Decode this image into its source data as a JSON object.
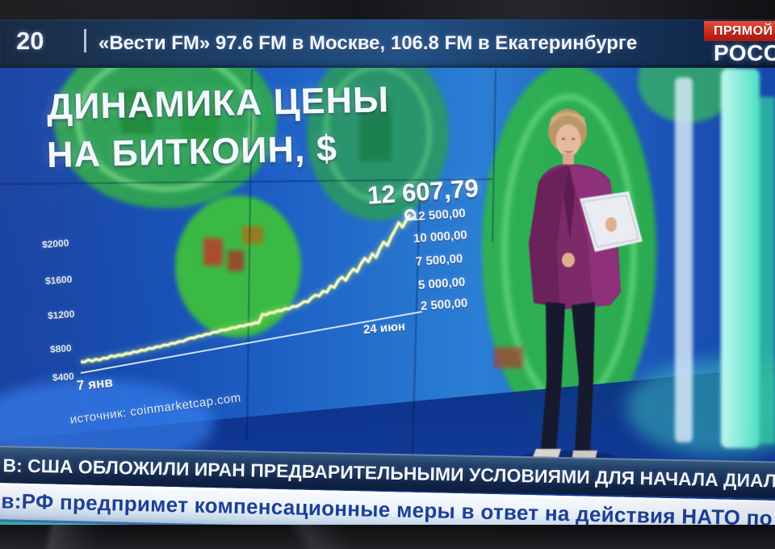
{
  "screen": {
    "top_bar": {
      "clock": "20",
      "station_info": "«Вести FM» 97.6 FM в Москве, 106.8 FM в Екатеринбурге",
      "live_badge": "ПРЯМОЙ",
      "channel_logo": "РОССИ"
    },
    "graphic": {
      "title_line1": "ДИНАМИКА ЦЕНЫ",
      "title_line2": "НА БИТКОИН, $",
      "price_callout": "12 607,79",
      "source": "источник: coinmarketcap.com"
    },
    "tickers": {
      "line1": "В: США ОБЛОЖИЛИ ИРАН ПРЕДВАРИТЕЛЬНЫМИ УСЛОВИЯМИ ДЛЯ НАЧАЛА ДИАЛОГА",
      "line2": "в:РФ предпримет компенсационные меры в ответ на действия НАТО по ДРСМД"
    },
    "colors": {
      "accent_red": "#c02318",
      "wall_blue": "#1a55bd",
      "coin_green": "#35c24a",
      "ticker2_text": "#1c3f99"
    }
  },
  "chart_data": {
    "type": "line",
    "title": "ДИНАМИКА ЦЕНЫ НА БИТКОИН, $",
    "unit": "USD",
    "grid": false,
    "legend_position": "none",
    "x_labels": [
      "7 янв",
      "24 июн"
    ],
    "left_axis_labels": [
      "$2000",
      "$1600",
      "$1200",
      "$800",
      "$400"
    ],
    "right_axis_labels": [
      "12 500,00",
      "10 000,00",
      "7 500,00",
      "5 000,00",
      "2 500,00"
    ],
    "right_axis_range": [
      2500,
      12500
    ],
    "last_point": {
      "label": "12 607,79",
      "value": 12607.79
    },
    "source": "источник: coinmarketcap.com",
    "line_color": "#f3f6c9",
    "series": [
      {
        "name": "Цена биткоина, $",
        "values": [
          3650,
          3550,
          3700,
          3500,
          3620,
          3480,
          3600,
          3520,
          3680,
          3560,
          3640,
          3540,
          3660,
          3580,
          3700,
          3600,
          3720,
          3640,
          3760,
          3680,
          3800,
          3720,
          3840,
          3760,
          3880,
          3800,
          3920,
          3860,
          3980,
          4050,
          4000,
          4120,
          4060,
          4180,
          4120,
          4240,
          4180,
          4300,
          4250,
          4280,
          4340,
          4300,
          4380,
          4320,
          4400,
          4350,
          4420,
          4380,
          5150,
          5050,
          5200,
          5120,
          5260,
          5180,
          5320,
          5240,
          5400,
          5330,
          5500,
          5700,
          5600,
          5950,
          6150,
          6000,
          6400,
          6250,
          6800,
          6600,
          7200,
          7500,
          7100,
          7700,
          8100,
          7800,
          8500,
          9000,
          8600,
          9300,
          8900,
          9700,
          10300,
          9900,
          10700,
          11300,
          12000,
          11500,
          12100,
          12607.79
        ]
      }
    ]
  }
}
